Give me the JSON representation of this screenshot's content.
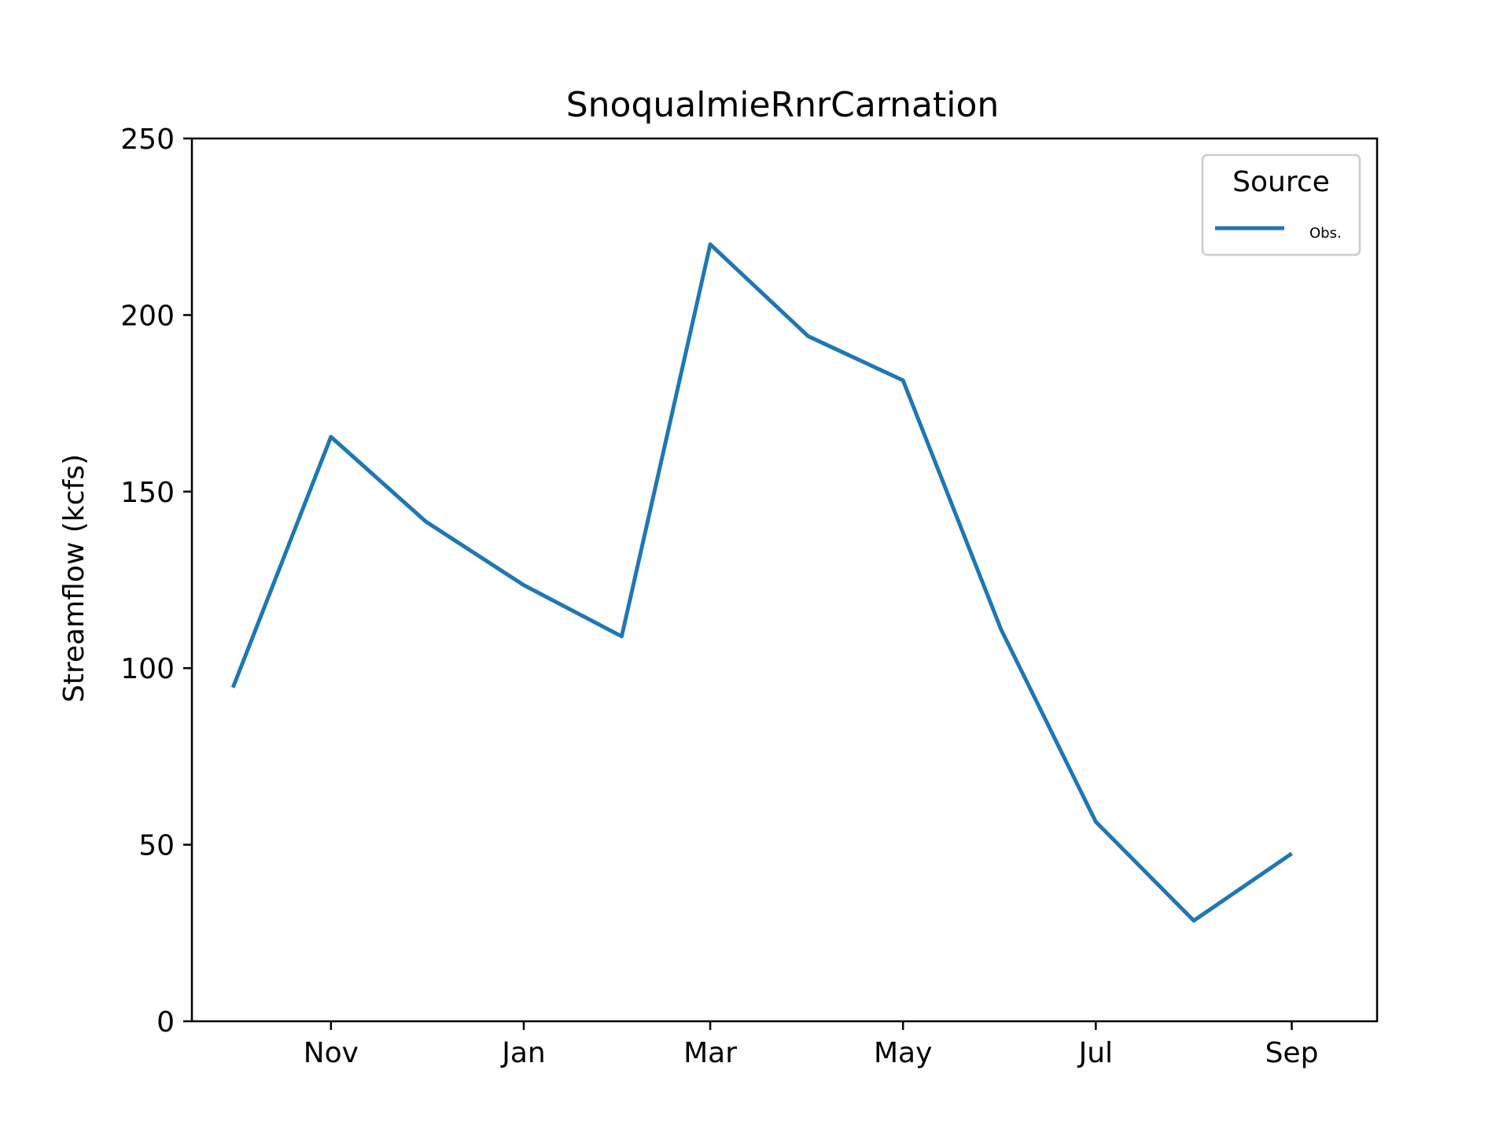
{
  "chart_data": {
    "type": "line",
    "title": "SnoqualmieRnrCarnation",
    "xlabel": "",
    "ylabel": "Streamflow (kcfs)",
    "ylim": [
      0,
      250
    ],
    "yticks": [
      0,
      50,
      100,
      150,
      200,
      250
    ],
    "x": [
      "2000-10-01",
      "2000-11-01",
      "2000-12-01",
      "2001-01-01",
      "2001-02-01",
      "2001-03-01",
      "2001-04-01",
      "2001-05-01",
      "2001-06-01",
      "2001-07-01",
      "2001-08-01",
      "2001-09-01"
    ],
    "xlim": [
      "2000-09-18",
      "2001-09-28"
    ],
    "xticks": [
      {
        "date": "2000-11-01",
        "label": "Nov"
      },
      {
        "date": "2001-01-01",
        "label": "Jan"
      },
      {
        "date": "2001-03-01",
        "label": "Mar"
      },
      {
        "date": "2001-05-01",
        "label": "May"
      },
      {
        "date": "2001-07-01",
        "label": "Jul"
      },
      {
        "date": "2001-09-01",
        "label": "Sep"
      }
    ],
    "series": [
      {
        "name": "Obs.",
        "color": "#1f77b4",
        "values": [
          94.5,
          165.5,
          141.5,
          123.5,
          109.0,
          220.0,
          194.0,
          181.5,
          111.0,
          56.5,
          28.5,
          47.5
        ]
      }
    ],
    "legend": {
      "title": "Source",
      "position": "top-right"
    },
    "grid": false
  }
}
